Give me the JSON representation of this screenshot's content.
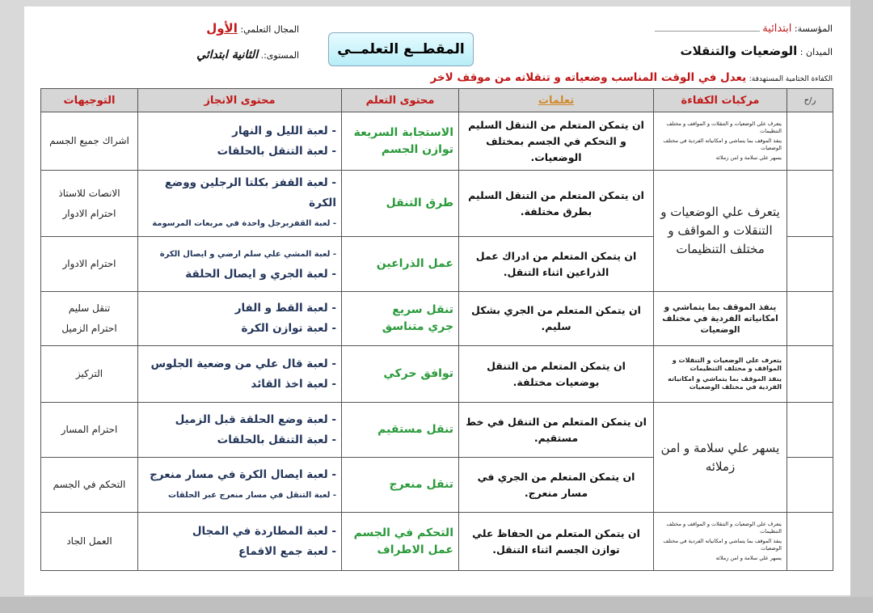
{
  "header": {
    "institution_label": "المؤسسة:",
    "institution_value": "ابتدائية",
    "domain_label": "الميدان :",
    "domain_value": "الوضعيات والتنقلات",
    "learning_area_label": "المجال التعلمي:",
    "learning_area_value": "الأول",
    "level_label": "المستوى:.",
    "level_value": "الثانية ابتدائي",
    "title": "المقطــع التعلمــي",
    "final_competency_label": "الكفاءة الختامية المستهدفة:",
    "final_competency_value": "يعدل في الوقت المناسب وضعياته و تنقلاته من موقف لاخر"
  },
  "table": {
    "headers": [
      "ر/ح",
      "مركبات الكفاءة",
      "تعلمات",
      "محتوى التعلم",
      "محتوى الانجاز",
      "التوجيهات"
    ],
    "competency_cells": [
      {
        "rowspan": 1,
        "kind": "small",
        "items": [
          "يتعرف علي الوضعيات و التنقلات و المواقف و مختلف التنظيمات",
          "ينفذ الموقف بما يتماشي و امكانياته الفردية في مختلف الوضعيات",
          "يسهر علي سلامة و امن زملائه"
        ]
      },
      {
        "rowspan": 2,
        "kind": "big",
        "items": [
          "يتعرف علي الوضعيات و التنقلات و المواقف و مختلف التنظيمات"
        ]
      },
      {
        "rowspan": 1,
        "kind": "mid",
        "items": [
          "ينفذ الموقف بما يتماشي و امكانياته الفردية في مختلف الوضعيات"
        ]
      },
      {
        "rowspan": 1,
        "kind": "bsmall",
        "items": [
          "يتعرف علي الوضعيات و التنقلات و المواقف و مختلف التنظيمات",
          "ينفذ الموقف بما يتماشي و امكانياته الفردية في مختلف الوضعيات"
        ]
      },
      {
        "rowspan": 2,
        "kind": "big",
        "items": [
          "يسهر علي سلامة و امن زملائه"
        ]
      },
      {
        "rowspan": 1,
        "kind": "small",
        "items": [
          "يتعرف علي الوضعيات و التنقلات و المواقف و مختلف التنظيمات",
          "ينفذ الموقف بما يتماشي و امكانياته الفردية في مختلف الوضعيات",
          "يسهر علي سلامة و امن زملائه"
        ]
      }
    ],
    "rows": [
      {
        "learning": "ان يتمكن المتعلم من التنقل السليم و التحكم في الجسم بمختلف الوضعيات.",
        "content": [
          "الاستجابة السريعة",
          "توازن الجسم"
        ],
        "activities": [
          "- لعبة الليل و النهار",
          "- لعبة التنقل بالحلقات"
        ],
        "guidance": [
          "اشراك جميع الجسم"
        ]
      },
      {
        "learning": "ان يتمكن المتعلم من التنقل السليم بطرق مختلفة.",
        "content": [
          "طرق التنقل"
        ],
        "activities": [
          "- لعبة القفز بكلتا الرجلين ووضع الكرة",
          "- لعبة القفزبرجل واحدة في مربعات المرسومة"
        ],
        "guidance": [
          "الانصات للاستاذ",
          "احترام الادوار"
        ]
      },
      {
        "learning": "ان يتمكن المتعلم من ادراك عمل الذراعين اثناء التنقل.",
        "content": [
          "عمل الذراعين"
        ],
        "activities": [
          "- لعبة المشي علي سلم ارضي و ايصال الكرة",
          "- لعبة الجري و ايصال الحلقة"
        ],
        "guidance": [
          "احترام الادوار"
        ]
      },
      {
        "learning": "ان يتمكن المتعلم من الجري بشكل سليم.",
        "content": [
          "تنقل سريع",
          "جري متناسق"
        ],
        "activities": [
          "- لعبة القط و الفار",
          "- لعبة توازن الكرة"
        ],
        "guidance": [
          "تنقل سليم",
          "احترام الزميل"
        ]
      },
      {
        "learning": "ان يتمكن المتعلم من التنقل بوضعيات مختلفة.",
        "content": [
          "توافق حركي"
        ],
        "activities": [
          "- لعبة قال علي من وضعية الجلوس",
          "- لعبة اخذ القائد"
        ],
        "guidance": [
          "التركيز"
        ]
      },
      {
        "learning": "ان يتمكن المتعلم من التنقل في خط مستقيم.",
        "content": [
          "تنقل مستقيم"
        ],
        "activities": [
          "- لعبة وضع الحلقة قبل الزميل",
          "- لعبة التنقل بالحلقات"
        ],
        "guidance": [
          "احترام المسار"
        ]
      },
      {
        "learning": "ان يتمكن المتعلم من الجري في مسار منعرج.",
        "content": [
          "تنقل منعرج"
        ],
        "activities": [
          "- لعبة ايصال الكرة في مسار منعرج",
          "- لعبة التنقل في مسار منعرج عبر الحلقات"
        ],
        "guidance": [
          "التحكم في الجسم"
        ]
      },
      {
        "learning": "ان يتمكن المتعلم من الحفاظ علي توازن الجسم اثناء التنقل.",
        "content": [
          "التحكم في الجسم",
          "عمل الاطراف"
        ],
        "activities": [
          "- لعبة المطاردة في المجال",
          "- لعبة جمع الاقماع"
        ],
        "guidance": [
          "العمل الجاد"
        ]
      }
    ]
  }
}
